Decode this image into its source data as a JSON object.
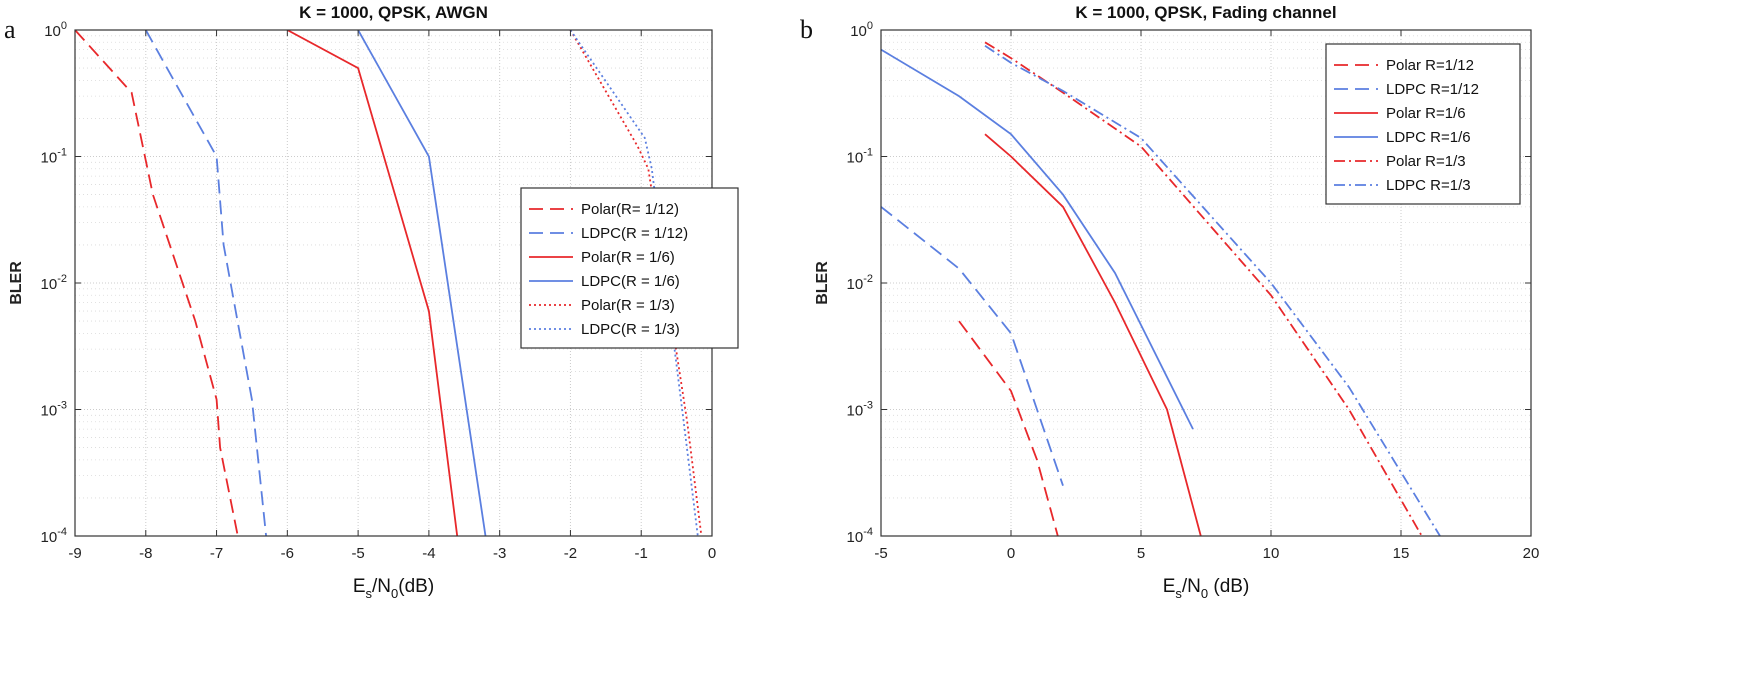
{
  "chart_data": [
    {
      "panel_label": "a",
      "type": "line",
      "title": "K = 1000, QPSK, AWGN",
      "xlabel": {
        "main": "E",
        "sub1": "s",
        "mid": "/N",
        "sub2": "0",
        "tail": "(dB)"
      },
      "ylabel": "BLER",
      "xlim": [
        -9,
        0
      ],
      "ylim": [
        0.0001,
        1
      ],
      "yscale": "log",
      "grid": true,
      "xticks": [
        -9,
        -8,
        -7,
        -6,
        -5,
        -4,
        -3,
        -2,
        -1,
        0
      ],
      "xtick_labels": [
        "-9",
        "-8",
        "-7",
        "-6",
        "-5",
        "-4",
        "-3",
        "-2",
        "-1",
        "0"
      ],
      "yticks": [
        {
          "base": "10",
          "exp": "0",
          "value": 1
        },
        {
          "base": "10",
          "exp": "-1",
          "value": 0.1
        },
        {
          "base": "10",
          "exp": "-2",
          "value": 0.01
        },
        {
          "base": "10",
          "exp": "-3",
          "value": 0.001
        },
        {
          "base": "10",
          "exp": "-4",
          "value": 0.0001
        }
      ],
      "legend_position": "right",
      "series": [
        {
          "name": "Polar(R= 1/12)",
          "color": "#e8282b",
          "dash": "dashed",
          "points": [
            [
              -9,
              1.0
            ],
            [
              -8.2,
              0.32
            ],
            [
              -7.9,
              0.05
            ],
            [
              -7.3,
              0.005
            ],
            [
              -7.0,
              0.0012
            ],
            [
              -6.95,
              0.0005
            ],
            [
              -6.7,
              0.0001
            ]
          ]
        },
        {
          "name": "LDPC(R = 1/12)",
          "color": "#5b7fe0",
          "dash": "dashed",
          "points": [
            [
              -8.0,
              1.0
            ],
            [
              -7.7,
              0.5
            ],
            [
              -7.0,
              0.1
            ],
            [
              -6.9,
              0.02
            ],
            [
              -6.5,
              0.0012
            ],
            [
              -6.3,
              0.0001
            ]
          ]
        },
        {
          "name": "Polar(R = 1/6)",
          "color": "#e8282b",
          "dash": "solid",
          "points": [
            [
              -6.0,
              1.0
            ],
            [
              -5.0,
              0.5
            ],
            [
              -4.0,
              0.006
            ],
            [
              -3.6,
              0.0001
            ]
          ]
        },
        {
          "name": "LDPC(R = 1/6)",
          "color": "#5b7fe0",
          "dash": "solid",
          "points": [
            [
              -5.0,
              1.0
            ],
            [
              -4.0,
              0.1
            ],
            [
              -3.2,
              0.0001
            ]
          ]
        },
        {
          "name": "Polar(R = 1/3)",
          "color": "#e8282b",
          "dash": "dotted",
          "points": [
            [
              -2.0,
              1.0
            ],
            [
              -1.05,
              0.12
            ],
            [
              -0.9,
              0.08
            ],
            [
              -0.35,
              0.0008
            ],
            [
              -0.15,
              0.0001
            ]
          ]
        },
        {
          "name": "LDPC(R = 1/3)",
          "color": "#5b7fe0",
          "dash": "dotted",
          "points": [
            [
              -2.0,
              1.0
            ],
            [
              -0.95,
              0.14
            ],
            [
              -0.85,
              0.08
            ],
            [
              -0.4,
              0.0008
            ],
            [
              -0.2,
              0.0001
            ]
          ]
        }
      ]
    },
    {
      "panel_label": "b",
      "type": "line",
      "title": "K = 1000, QPSK, Fading channel",
      "xlabel": {
        "main": "E",
        "sub1": "s",
        "mid": "/N",
        "sub2": "0",
        "tail": " (dB)"
      },
      "ylabel": "BLER",
      "xlim": [
        -5,
        20
      ],
      "ylim": [
        0.0001,
        1
      ],
      "yscale": "log",
      "grid": true,
      "xticks": [
        -5,
        0,
        5,
        10,
        15,
        20
      ],
      "xtick_labels": [
        "-5",
        "0",
        "5",
        "10",
        "15",
        "20"
      ],
      "yticks": [
        {
          "base": "10",
          "exp": "0",
          "value": 1
        },
        {
          "base": "10",
          "exp": "-1",
          "value": 0.1
        },
        {
          "base": "10",
          "exp": "-2",
          "value": 0.01
        },
        {
          "base": "10",
          "exp": "-3",
          "value": 0.001
        },
        {
          "base": "10",
          "exp": "-4",
          "value": 0.0001
        }
      ],
      "legend_position": "top-right",
      "series": [
        {
          "name": "Polar R=1/12",
          "color": "#e8282b",
          "dash": "dashed",
          "points": [
            [
              -2.0,
              0.005
            ],
            [
              0.0,
              0.0014
            ],
            [
              1.0,
              0.0004
            ],
            [
              1.8,
              0.0001
            ]
          ]
        },
        {
          "name": "LDPC R=1/12",
          "color": "#5b7fe0",
          "dash": "dashed",
          "points": [
            [
              -5.0,
              0.04
            ],
            [
              -2.0,
              0.013
            ],
            [
              0.0,
              0.004
            ],
            [
              1.0,
              0.001
            ],
            [
              2.0,
              0.00025
            ]
          ]
        },
        {
          "name": "Polar R=1/6",
          "color": "#e8282b",
          "dash": "solid",
          "points": [
            [
              -1.0,
              0.15
            ],
            [
              0.0,
              0.1
            ],
            [
              2.0,
              0.04
            ],
            [
              4.0,
              0.007
            ],
            [
              6.0,
              0.001
            ],
            [
              7.3,
              0.0001
            ]
          ]
        },
        {
          "name": "LDPC R=1/6",
          "color": "#5b7fe0",
          "dash": "solid",
          "points": [
            [
              -5.0,
              0.7
            ],
            [
              -2.0,
              0.3
            ],
            [
              0.0,
              0.15
            ],
            [
              2.0,
              0.05
            ],
            [
              4.0,
              0.012
            ],
            [
              7.0,
              0.0007
            ]
          ]
        },
        {
          "name": "Polar R=1/3",
          "color": "#e8282b",
          "dash": "dashdot",
          "points": [
            [
              -1.0,
              0.8
            ],
            [
              0.0,
              0.6
            ],
            [
              2.0,
              0.32
            ],
            [
              5.0,
              0.12
            ],
            [
              10.0,
              0.008
            ],
            [
              13.0,
              0.001
            ],
            [
              15.8,
              0.0001
            ]
          ]
        },
        {
          "name": "LDPC R=1/3",
          "color": "#5b7fe0",
          "dash": "dashdot",
          "points": [
            [
              -1.0,
              0.75
            ],
            [
              0.0,
              0.55
            ],
            [
              2.0,
              0.33
            ],
            [
              5.0,
              0.14
            ],
            [
              10.0,
              0.01
            ],
            [
              13.0,
              0.0015
            ],
            [
              16.5,
              0.0001
            ]
          ]
        }
      ]
    }
  ]
}
